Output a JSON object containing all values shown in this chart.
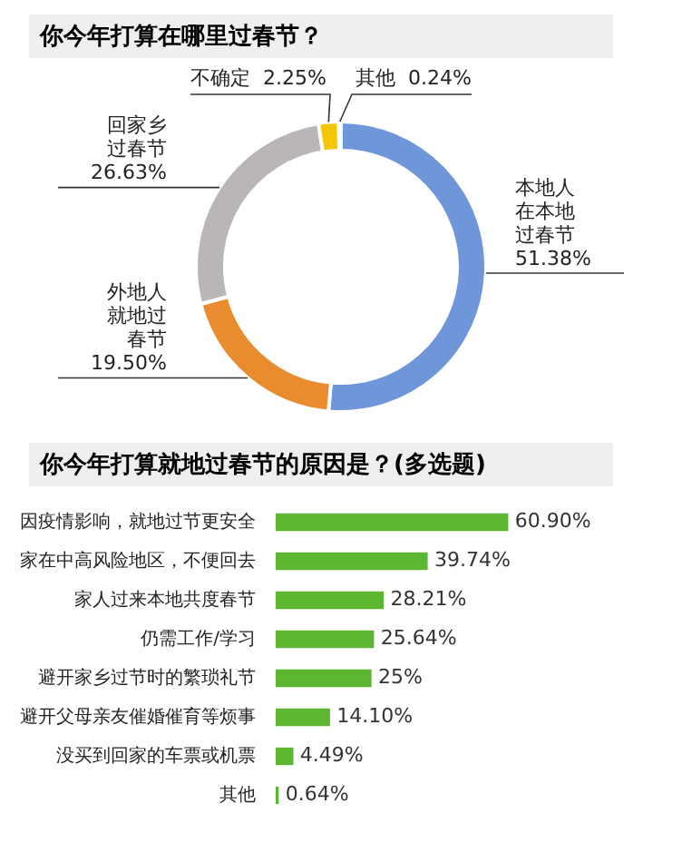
{
  "chart_data": [
    {
      "type": "donut",
      "title": "你今年打算在哪里过春节？",
      "categories": [
        "本地人在本地过春节",
        "外地人就地过春节",
        "回家乡过春节",
        "不确定",
        "其他"
      ],
      "values": [
        51.38,
        19.5,
        26.63,
        2.25,
        0.24
      ],
      "colors": [
        "#6f96d8",
        "#e98c30",
        "#bab6b5",
        "#f4c600",
        "#f4c600"
      ],
      "value_labels": [
        "51.38%",
        "19.50%",
        "26.63%",
        "2.25%",
        "0.24%"
      ]
    },
    {
      "type": "bar",
      "orientation": "horizontal",
      "title": "你今年打算就地过春节的原因是？(多选题)",
      "categories": [
        "因疫情影响，就地过节更安全",
        "家在中高风险地区，不便回去",
        "家人过来本地共度春节",
        "仍需工作/学习",
        "避开家乡过节时的繁琐礼节",
        "避开父母亲友催婚催育等烦事",
        "没买到回家的车票或机票",
        "其他"
      ],
      "values": [
        60.9,
        39.74,
        28.21,
        25.64,
        25,
        14.1,
        4.49,
        0.64
      ],
      "color": "#5db632",
      "value_labels": [
        "60.90%",
        "39.74%",
        "28.21%",
        "25.64%",
        "25%",
        "14.10%",
        "4.49%",
        "0.64%"
      ]
    }
  ]
}
